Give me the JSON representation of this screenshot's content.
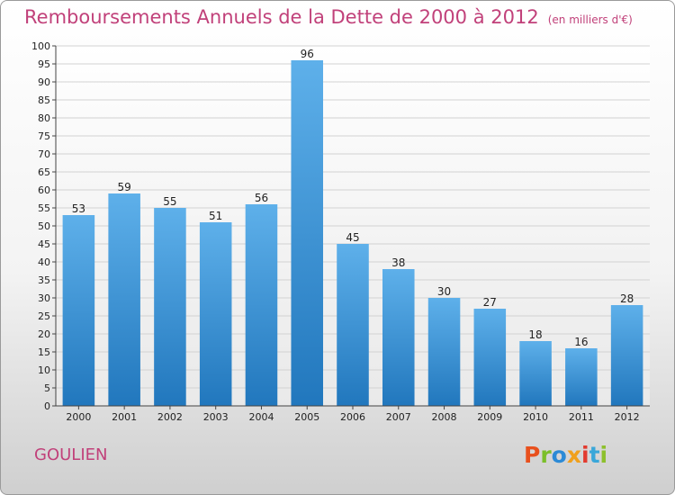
{
  "title": "Remboursements Annuels de la Dette de 2000 à 2012",
  "unit": "(en milliers d'€)",
  "town": "GOULIEN",
  "logo": "Proxiti",
  "colors": {
    "title": "#c1417a",
    "bar_top": "#5eb0ea",
    "bar_bottom": "#2177bd",
    "logo_letters": [
      "#e8501d",
      "#7bbf2a",
      "#2b8ad6",
      "#f0a01d",
      "#e23b2f",
      "#3aa7d9",
      "#8dc02c"
    ]
  },
  "chart_data": {
    "type": "bar",
    "categories": [
      "2000",
      "2001",
      "2002",
      "2003",
      "2004",
      "2005",
      "2006",
      "2007",
      "2008",
      "2009",
      "2010",
      "2011",
      "2012"
    ],
    "values": [
      53,
      59,
      55,
      51,
      56,
      96,
      45,
      38,
      30,
      27,
      18,
      16,
      28
    ],
    "ylim": [
      0,
      100
    ],
    "ytick_step": 5,
    "grid": true,
    "data_labels": true
  }
}
